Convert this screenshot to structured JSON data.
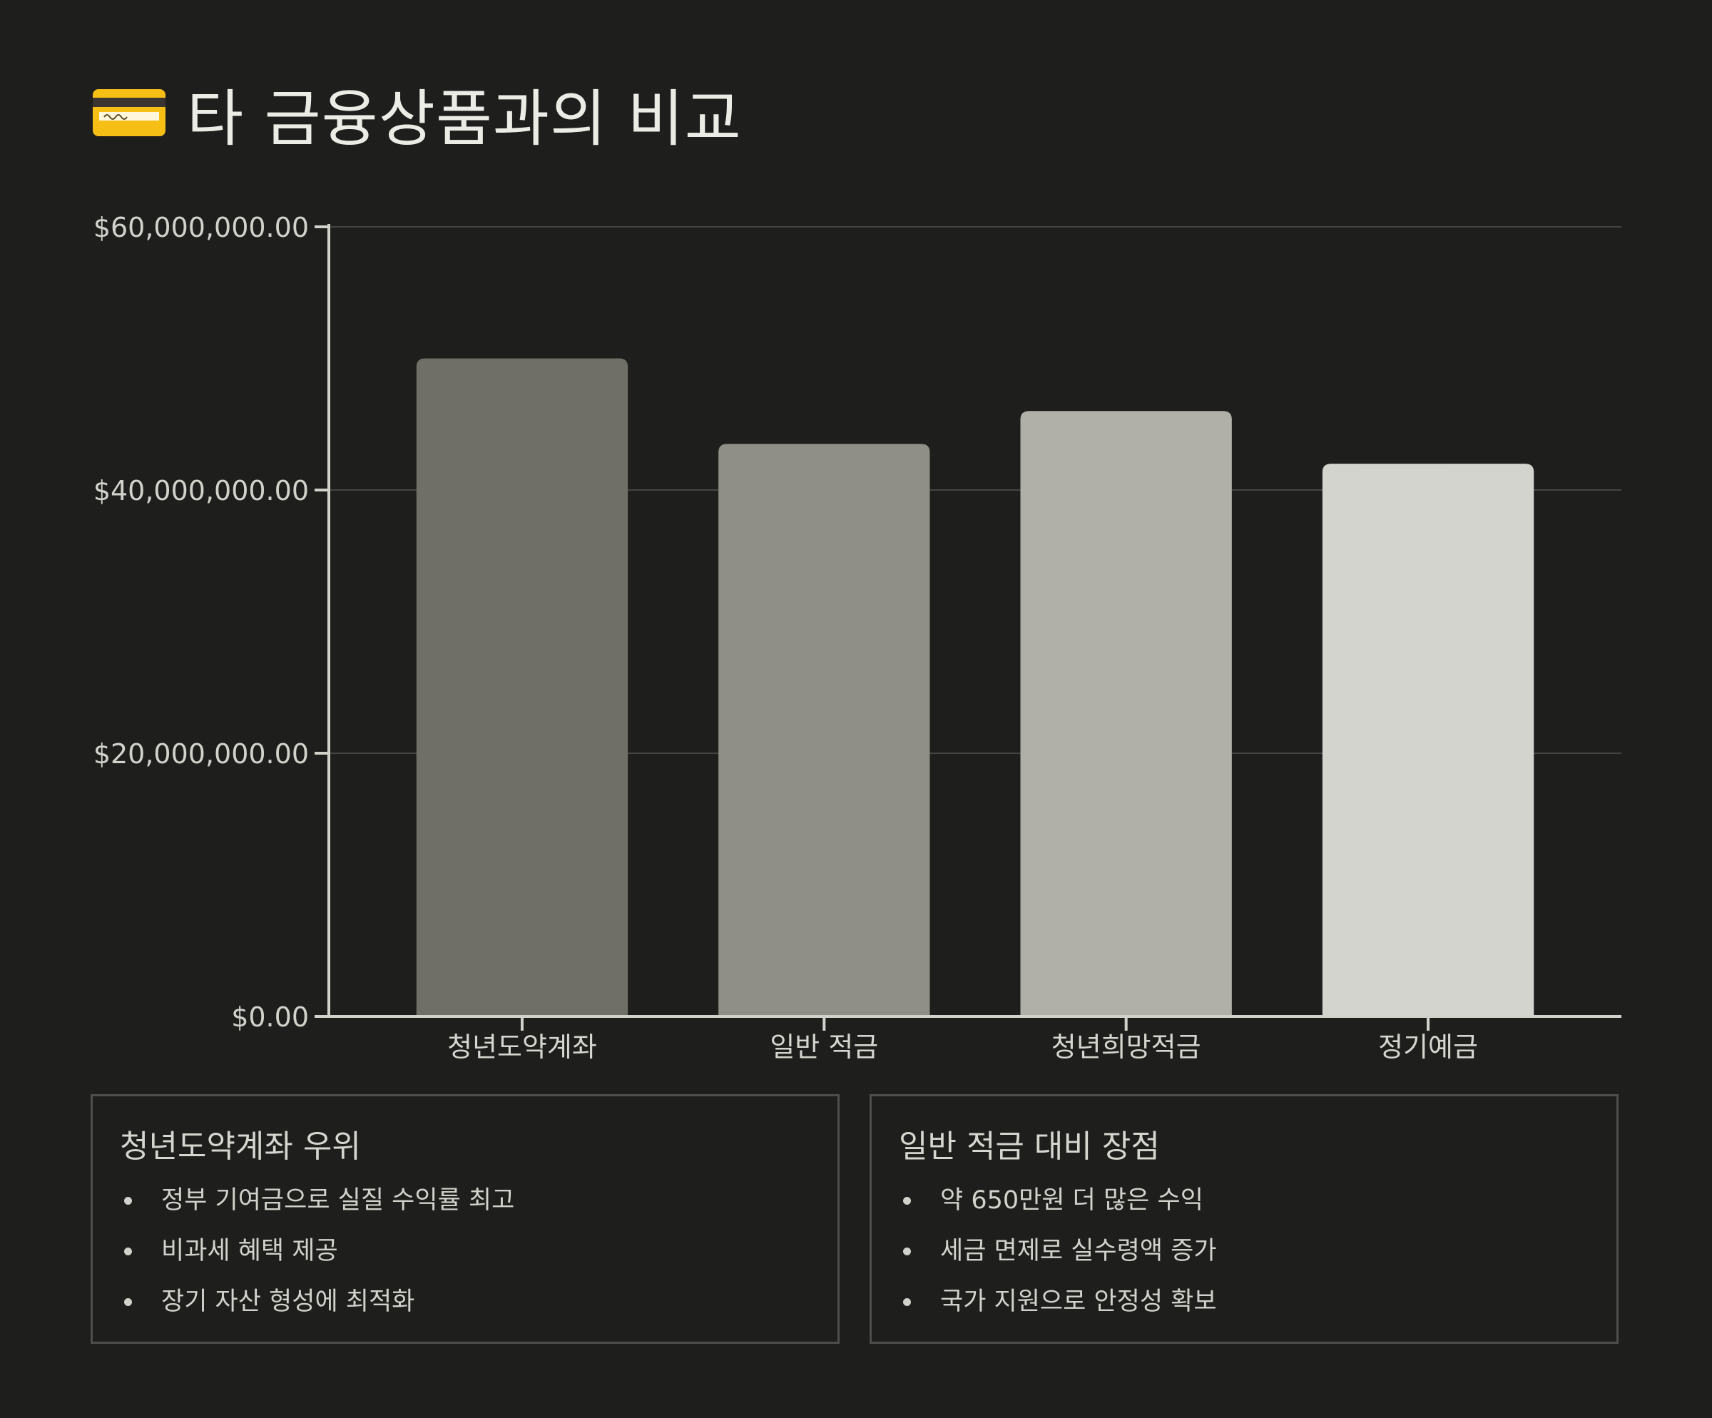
{
  "title": "타 금융상품과의 비교",
  "title_icon": "credit-card-icon",
  "colors": {
    "background": "#1e1e1d",
    "bars": [
      "#6f6f67",
      "#8f8f87",
      "#b0b0a9",
      "#d4d4cf"
    ],
    "grid": "#444442",
    "axis": "#d2d2cc"
  },
  "chart_data": {
    "type": "bar",
    "categories": [
      "청년도약계좌",
      "일반 적금",
      "청년희망적금",
      "정기예금"
    ],
    "values": [
      50000000,
      43500000,
      46000000,
      42000000
    ],
    "ylim": [
      0,
      60000000
    ],
    "yticks": [
      0,
      20000000,
      40000000,
      60000000
    ],
    "ytick_labels": [
      "$0.00",
      "$20,000,000.00",
      "$40,000,000.00",
      "$60,000,000.00"
    ],
    "grid": true,
    "xlabel": "",
    "ylabel": ""
  },
  "panels": [
    {
      "title": "청년도약계좌 우위",
      "items": [
        "정부 기여금으로 실질 수익률 최고",
        "비과세 혜택 제공",
        "장기 자산 형성에 최적화"
      ]
    },
    {
      "title": "일반 적금 대비 장점",
      "items": [
        "약 650만원 더 많은 수익",
        "세금 면제로 실수령액 증가",
        "국가 지원으로 안정성 확보"
      ]
    }
  ]
}
